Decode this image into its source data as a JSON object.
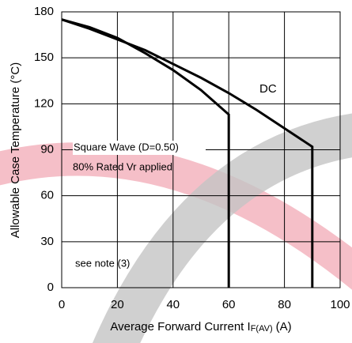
{
  "chart_data": {
    "type": "line",
    "y_label": "Allowable Case Temperature (°C)",
    "x_label": "Average Forward Current I",
    "x_label_sub": "F(AV)",
    "x_label_unit": "(A)",
    "xlim": [
      0,
      100
    ],
    "xticks": [
      0,
      20,
      40,
      60,
      80,
      100
    ],
    "ylim": [
      0,
      180
    ],
    "yticks": [
      0,
      30,
      60,
      90,
      120,
      150,
      180
    ],
    "grid": true,
    "series": [
      {
        "name": "DC",
        "color": "#000000",
        "x": [
          0,
          10,
          20,
          30,
          40,
          50,
          60,
          70,
          80,
          90,
          90
        ],
        "values": [
          175,
          169,
          162,
          155,
          146,
          137,
          127,
          116,
          104,
          92,
          0
        ]
      },
      {
        "name": "Square Wave (D=0.50)",
        "color": "#000000",
        "x": [
          0,
          10,
          20,
          30,
          40,
          50,
          60,
          60
        ],
        "values": [
          175,
          170,
          163,
          153,
          142,
          129,
          113,
          0
        ]
      }
    ],
    "annotations": [
      "80% Rated Vr applied",
      "see note (3)"
    ]
  }
}
